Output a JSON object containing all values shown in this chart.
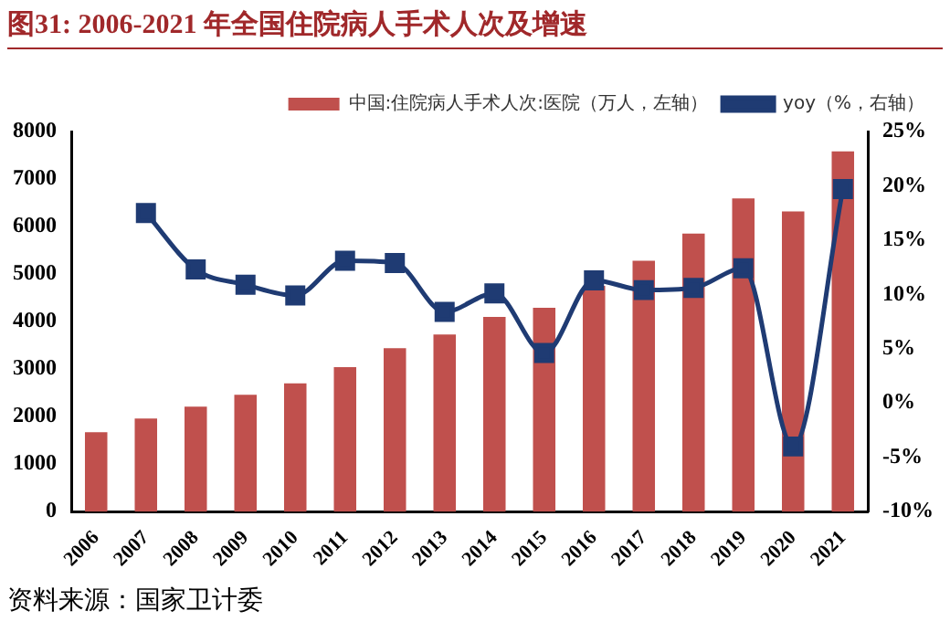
{
  "chart_data": {
    "type": "bar",
    "title": "图31:   2006-2021 年全国住院病人手术人次及增速",
    "categories": [
      "2006",
      "2007",
      "2008",
      "2009",
      "2010",
      "2011",
      "2012",
      "2013",
      "2014",
      "2015",
      "2016",
      "2017",
      "2018",
      "2019",
      "2020",
      "2021"
    ],
    "series": [
      {
        "name": "中国:住院病人手术人次:医院（万人，左轴）",
        "color": "#c0504d",
        "values": [
          1670,
          1960,
          2210,
          2460,
          2700,
          3040,
          3440,
          3730,
          4100,
          4290,
          4750,
          5280,
          5850,
          6590,
          6320,
          7580
        ]
      },
      {
        "name": "yoy（%，右轴）",
        "type": "line",
        "axis": "y2",
        "color": "#1f3b73",
        "marker": "square",
        "values": [
          null,
          17.5,
          12.3,
          10.9,
          9.9,
          13.1,
          12.9,
          8.4,
          10.1,
          4.6,
          11.3,
          10.4,
          10.6,
          12.4,
          -4.0,
          19.7
        ]
      }
    ],
    "ylim": [
      0,
      8000
    ],
    "yticks": [
      0,
      1000,
      2000,
      3000,
      4000,
      5000,
      6000,
      7000,
      8000
    ],
    "y2lim": [
      -10,
      25
    ],
    "y2ticks": [
      {
        "value": -10,
        "label": "-10%"
      },
      {
        "value": -5,
        "label": "-5%"
      },
      {
        "value": 0,
        "label": "0%"
      },
      {
        "value": 5,
        "label": "5%"
      },
      {
        "value": 10,
        "label": "10%"
      },
      {
        "value": 15,
        "label": "15%"
      },
      {
        "value": 20,
        "label": "20%"
      },
      {
        "value": 25,
        "label": "25%"
      }
    ],
    "legend": "top",
    "grid": false,
    "annotations": [
      "资料来源：国家卫计委"
    ]
  }
}
